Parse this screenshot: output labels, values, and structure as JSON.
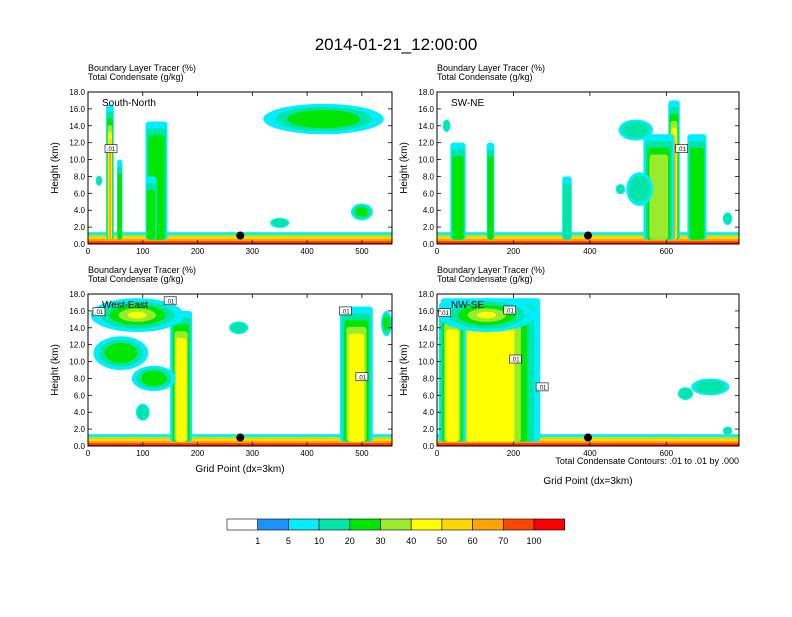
{
  "figure": {
    "title": "2014-01-21_12:00:00",
    "footnote": "Total Condensate Contours: .01 to .01 by .000"
  },
  "colorbar": {
    "labels": [
      "1",
      "5",
      "10",
      "20",
      "30",
      "40",
      "50",
      "60",
      "70",
      "100"
    ],
    "colors": [
      "#ffffff",
      "#1e90ff",
      "#00eeff",
      "#00e6a8",
      "#00e600",
      "#9aeb2e",
      "#ffff00",
      "#ffd700",
      "#ffa500",
      "#ff4500",
      "#ff0000"
    ]
  },
  "chart_data": [
    {
      "type": "heatmap",
      "name": "South-North",
      "subtitle_line1": "Boundary Layer Tracer   (%)",
      "subtitle_line2": "Total Condensate   (g/kg)",
      "xlabel": "",
      "ylabel": "Height (km)",
      "xlim": [
        0,
        555
      ],
      "ylim": [
        0,
        18
      ],
      "xticks": [
        "0",
        "100",
        "200",
        "300",
        "400",
        "500"
      ],
      "yticks": [
        "0.0",
        "2.0",
        "4.0",
        "6.0",
        "8.0",
        "10.0",
        "12.0",
        "14.0",
        "16.0",
        "18.0"
      ],
      "contour_labels": [
        {
          "text": ".01",
          "x": 42,
          "y": 11.3
        }
      ],
      "marker": {
        "x": 278,
        "y": 1.0
      },
      "plumes": [
        {
          "x": 40,
          "w": 14,
          "top": 16.5,
          "level": 60
        },
        {
          "x": 58,
          "w": 10,
          "top": 10,
          "level": 20
        },
        {
          "x": 125,
          "w": 40,
          "top": 14.5,
          "level": 20
        },
        {
          "x": 115,
          "w": 20,
          "top": 8,
          "level": 20
        }
      ],
      "clouds": [
        {
          "x": 430,
          "y": 14.8,
          "w": 220,
          "h": 3.6,
          "level": 20
        },
        {
          "x": 500,
          "y": 3.8,
          "w": 40,
          "h": 2.0,
          "level": 20
        },
        {
          "x": 350,
          "y": 2.5,
          "w": 35,
          "h": 1.2,
          "level": 10
        },
        {
          "x": 20,
          "y": 7.5,
          "w": 12,
          "h": 1.2,
          "level": 10
        }
      ]
    },
    {
      "type": "heatmap",
      "name": "SW-NE",
      "subtitle_line1": "Boundary Layer Tracer   (%)",
      "subtitle_line2": "Total Condensate   (g/kg)",
      "xlabel": "",
      "ylabel": "Height (km)",
      "xlim": [
        0,
        790
      ],
      "ylim": [
        0,
        18
      ],
      "xticks": [
        "0",
        "200",
        "400",
        "600"
      ],
      "yticks": [
        "0.0",
        "2.0",
        "4.0",
        "6.0",
        "8.0",
        "10.0",
        "12.0",
        "14.0",
        "16.0",
        "18.0"
      ],
      "contour_labels": [
        {
          "text": ".01",
          "x": 640,
          "y": 11.3
        }
      ],
      "marker": {
        "x": 395,
        "y": 1.0
      },
      "plumes": [
        {
          "x": 620,
          "w": 30,
          "top": 17.0,
          "level": 60
        },
        {
          "x": 580,
          "w": 80,
          "top": 13,
          "level": 30
        },
        {
          "x": 680,
          "w": 50,
          "top": 13,
          "level": 20
        },
        {
          "x": 140,
          "w": 20,
          "top": 12,
          "level": 20
        },
        {
          "x": 55,
          "w": 40,
          "top": 12,
          "level": 20
        },
        {
          "x": 340,
          "w": 25,
          "top": 8,
          "level": 10
        }
      ],
      "clouds": [
        {
          "x": 520,
          "y": 13.5,
          "w": 90,
          "h": 2.5,
          "level": 10
        },
        {
          "x": 530,
          "y": 6.5,
          "w": 70,
          "h": 4.0,
          "level": 10
        },
        {
          "x": 480,
          "y": 6.5,
          "w": 25,
          "h": 1.2,
          "level": 10
        },
        {
          "x": 760,
          "y": 3.0,
          "w": 25,
          "h": 1.5,
          "level": 10
        },
        {
          "x": 25,
          "y": 14.0,
          "w": 20,
          "h": 1.5,
          "level": 10
        }
      ]
    },
    {
      "type": "heatmap",
      "name": "West-East",
      "subtitle_line1": "Boundary Layer Tracer   (%)",
      "subtitle_line2": "Total Condensate   (g/kg)",
      "xlabel": "Grid Point (dx=3km)",
      "ylabel": "Height (km)",
      "xlim": [
        0,
        555
      ],
      "ylim": [
        0,
        18
      ],
      "xticks": [
        "0",
        "100",
        "200",
        "300",
        "400",
        "500"
      ],
      "yticks": [
        "0.0",
        "2.0",
        "4.0",
        "6.0",
        "8.0",
        "10.0",
        "12.0",
        "14.0",
        "16.0",
        "18.0"
      ],
      "contour_labels": [
        {
          "text": ".01",
          "x": 20,
          "y": 15.9
        },
        {
          "text": ".01",
          "x": 150,
          "y": 17.2
        },
        {
          "text": ".01",
          "x": 470,
          "y": 16.0
        },
        {
          "text": ".01",
          "x": 500,
          "y": 8.2
        }
      ],
      "marker": {
        "x": 278,
        "y": 1.0
      },
      "plumes": [
        {
          "x": 170,
          "w": 40,
          "top": 16.0,
          "level": 40
        },
        {
          "x": 490,
          "w": 60,
          "top": 16.5,
          "level": 40
        }
      ],
      "clouds": [
        {
          "x": 90,
          "y": 15.5,
          "w": 170,
          "h": 4.0,
          "level": 40
        },
        {
          "x": 60,
          "y": 11.0,
          "w": 100,
          "h": 4.0,
          "level": 20
        },
        {
          "x": 120,
          "y": 8.0,
          "w": 80,
          "h": 3.0,
          "level": 20
        },
        {
          "x": 545,
          "y": 14.5,
          "w": 20,
          "h": 3.0,
          "level": 20
        },
        {
          "x": 275,
          "y": 14.0,
          "w": 35,
          "h": 1.5,
          "level": 10
        },
        {
          "x": 100,
          "y": 4.0,
          "w": 25,
          "h": 2.0,
          "level": 10
        }
      ]
    },
    {
      "type": "heatmap",
      "name": "NW-SE",
      "subtitle_line1": "Boundary Layer Tracer   (%)",
      "subtitle_line2": "Total Condensate   (g/kg)",
      "xlabel": "Grid Point (dx=3km)",
      "ylabel": "Height (km)",
      "xlim": [
        0,
        790
      ],
      "ylim": [
        0,
        18
      ],
      "xticks": [
        "0",
        "200",
        "400",
        "600"
      ],
      "yticks": [
        "0.0",
        "2.0",
        "4.0",
        "6.0",
        "8.0",
        "10.0",
        "12.0",
        "14.0",
        "16.0",
        "18.0"
      ],
      "contour_labels": [
        {
          "text": ".01",
          "x": 20,
          "y": 15.8
        },
        {
          "text": ".01",
          "x": 190,
          "y": 16.1
        },
        {
          "text": ".01",
          "x": 205,
          "y": 10.3
        },
        {
          "text": ".01",
          "x": 275,
          "y": 7.0
        }
      ],
      "marker": {
        "x": 395,
        "y": 1.0
      },
      "plumes": [
        {
          "x": 140,
          "w": 260,
          "top": 17.5,
          "level": 40
        },
        {
          "x": 40,
          "w": 70,
          "top": 17.0,
          "level": 40
        }
      ],
      "clouds": [
        {
          "x": 130,
          "y": 15.5,
          "w": 250,
          "h": 4.0,
          "level": 50
        },
        {
          "x": 715,
          "y": 7.0,
          "w": 100,
          "h": 2.0,
          "level": 10
        },
        {
          "x": 650,
          "y": 6.2,
          "w": 40,
          "h": 1.5,
          "level": 10
        },
        {
          "x": 760,
          "y": 1.8,
          "w": 25,
          "h": 1.0,
          "level": 10
        }
      ]
    }
  ]
}
